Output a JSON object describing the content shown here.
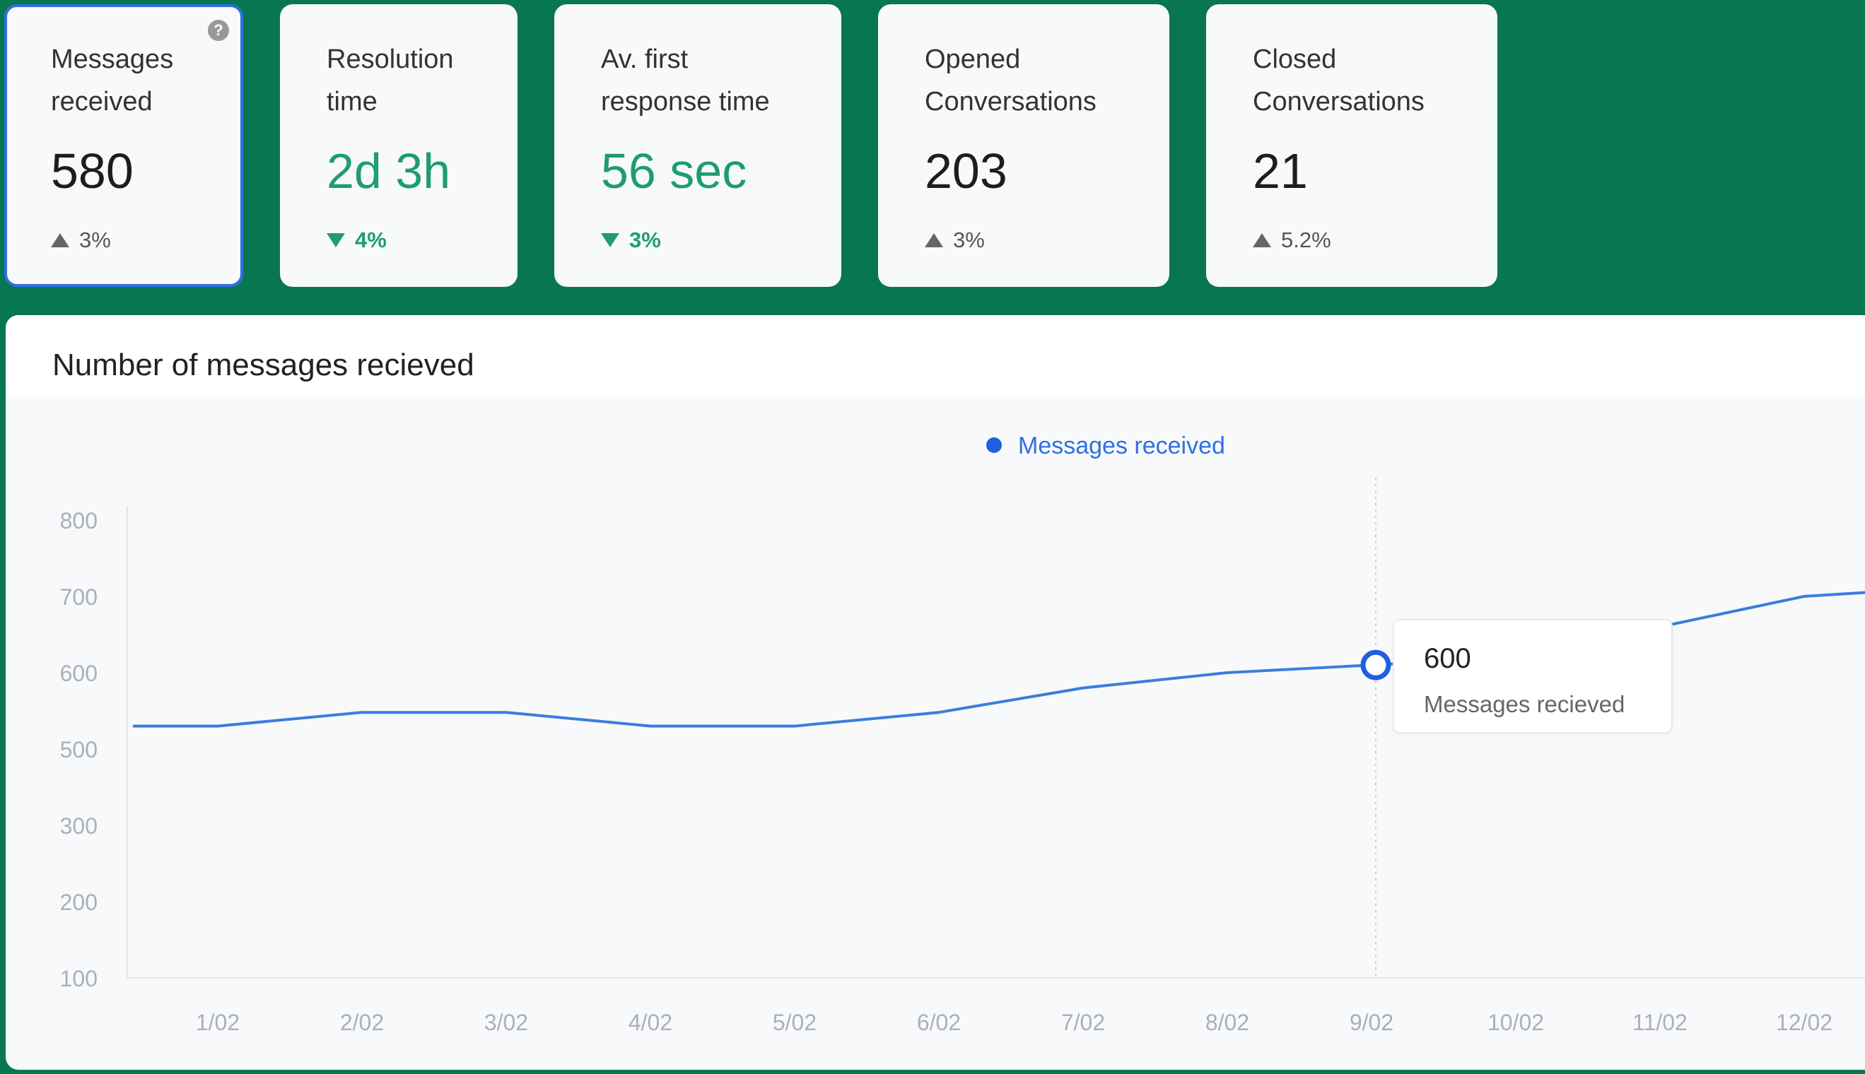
{
  "kpis": [
    {
      "title_line1": "Messages",
      "title_line2": "received",
      "value": "580",
      "change": "3%",
      "trend": "up",
      "selected": true
    },
    {
      "title_line1": "Resolution",
      "title_line2": "time",
      "value": "2d 3h",
      "change": "4%",
      "trend": "down"
    },
    {
      "title_line1": "Av. first",
      "title_line2": "response time",
      "value": "56 sec",
      "change": "3%",
      "trend": "down"
    },
    {
      "title_line1": "Opened",
      "title_line2": "Conversations",
      "value": "203",
      "change": "3%",
      "trend": "up"
    },
    {
      "title_line1": "Closed",
      "title_line2": "Conversations",
      "value": "21",
      "change": "5.2%",
      "trend": "up"
    }
  ],
  "help_icon": "?",
  "colors": {
    "background": "#087751",
    "line": "#3b7ddd",
    "good": "#1e9d6d",
    "legend_text": "#2f6fe0"
  },
  "chart_data": {
    "type": "line",
    "title": "Number of messages recieved",
    "legend": "Messages received",
    "legend_position": "top-center",
    "categories": [
      "1/02",
      "2/02",
      "3/02",
      "4/02",
      "5/02",
      "6/02",
      "7/02",
      "8/02",
      "9/02",
      "10/02",
      "11/02",
      "12/02"
    ],
    "x": [
      0.3,
      1,
      2,
      3,
      4,
      5,
      6,
      7,
      8,
      9,
      10,
      11,
      12,
      12.3
    ],
    "series": [
      {
        "name": "Messages received",
        "values": [
          530,
          530,
          548,
          548,
          530,
          530,
          548,
          580,
          600,
          610,
          620,
          660,
          700,
          705
        ]
      }
    ],
    "ytick_labels": [
      "800",
      "700",
      "600",
      "500",
      "300",
      "200",
      "100"
    ],
    "highlight": {
      "category": "9/02",
      "value": "600",
      "label": "Messages recieved"
    }
  }
}
